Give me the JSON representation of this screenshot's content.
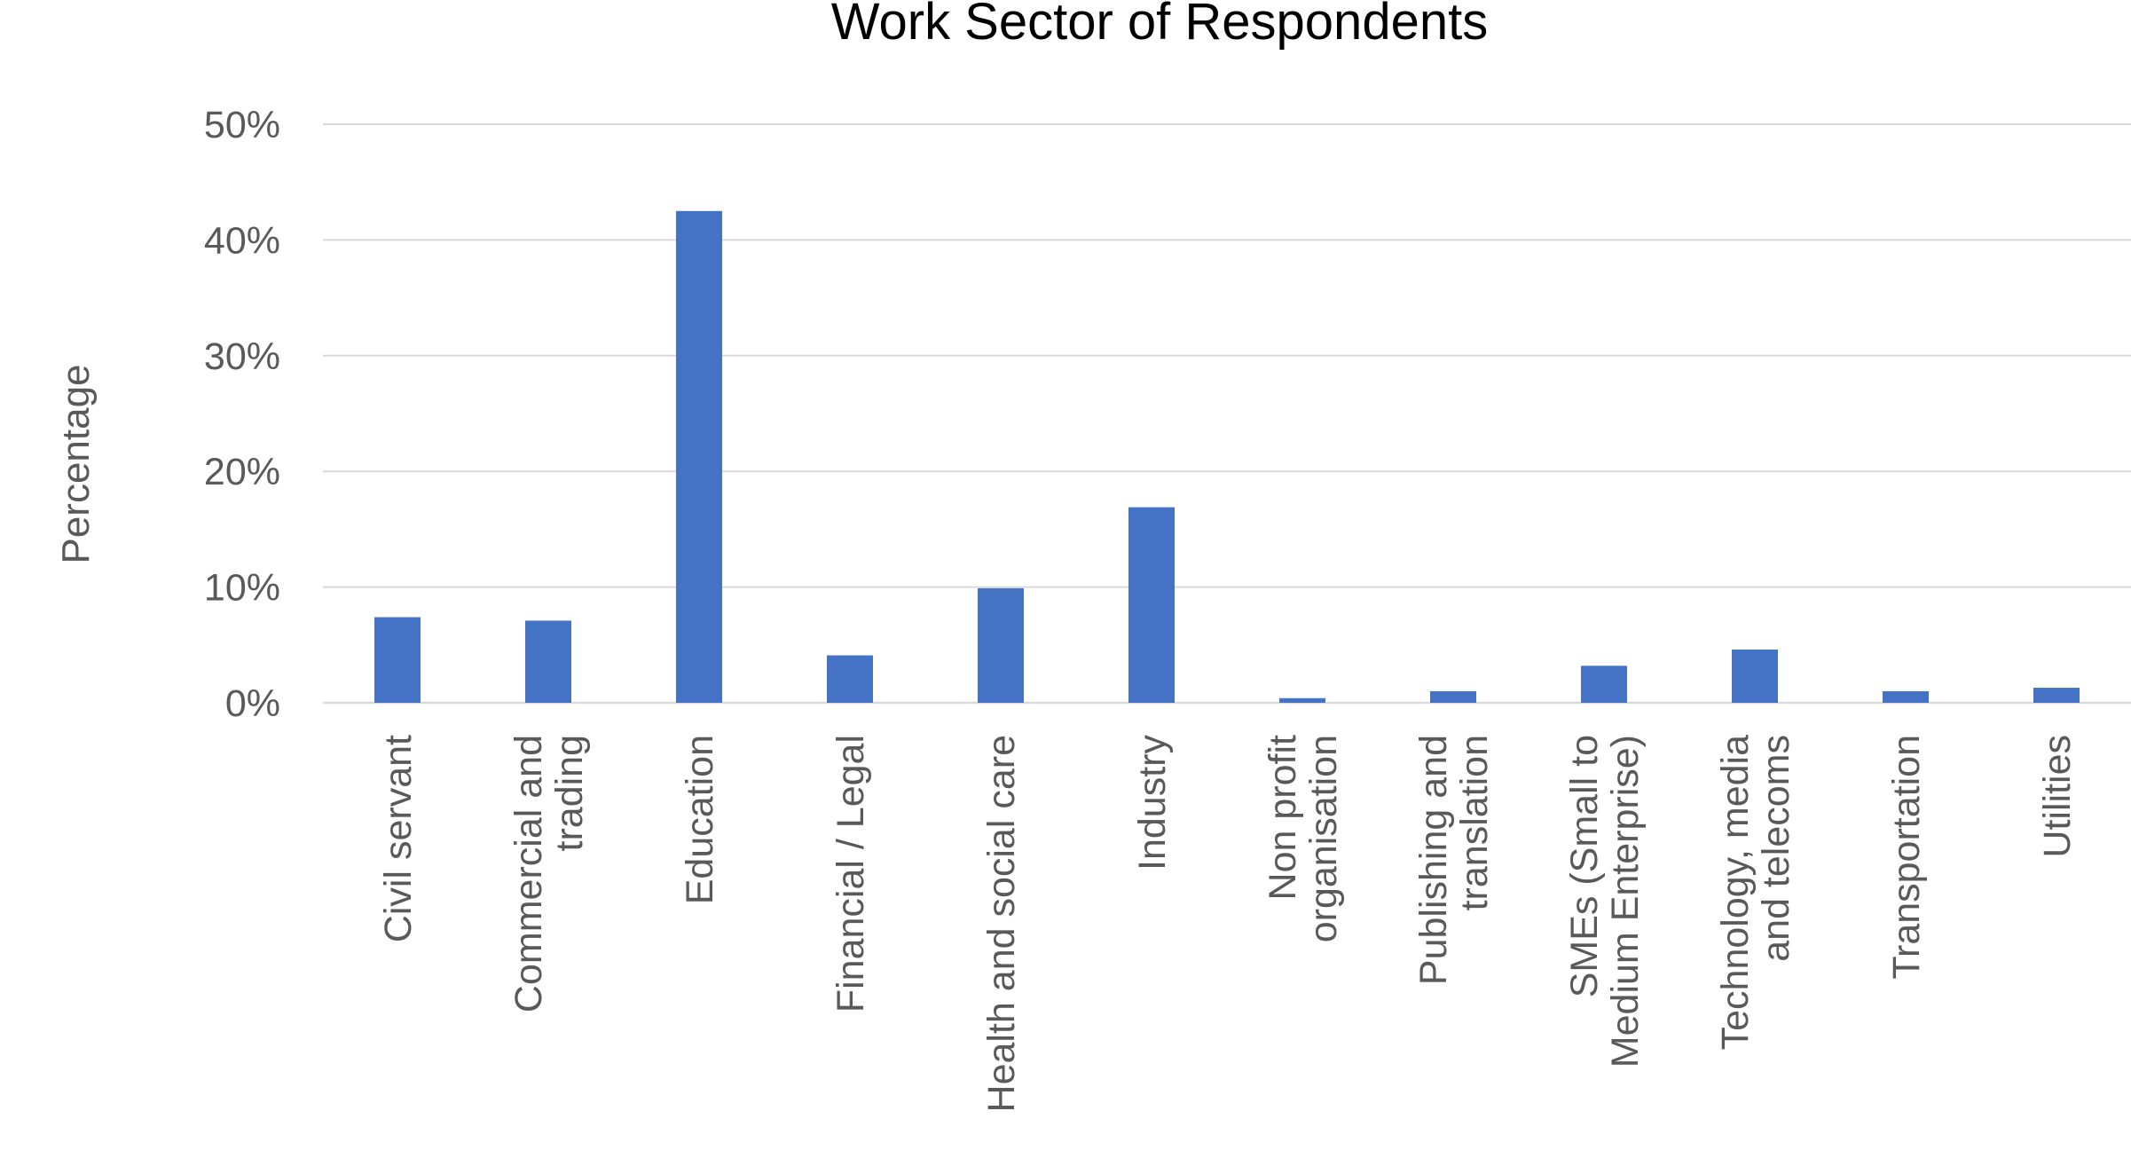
{
  "chart_data": {
    "type": "bar",
    "title": "Work Sector of Respondents",
    "xlabel": "",
    "ylabel": "Percentage",
    "ylim": [
      0,
      50
    ],
    "yticks": [
      0,
      10,
      20,
      30,
      40,
      50
    ],
    "ytick_labels": [
      "0%",
      "10%",
      "20%",
      "30%",
      "40%",
      "50%"
    ],
    "grid": true,
    "legend": "none",
    "bar_color": "#4472C4",
    "categories": [
      [
        "Civil servant"
      ],
      [
        "Commercial and",
        "trading"
      ],
      [
        "Education"
      ],
      [
        "Financial / Legal"
      ],
      [
        "Health and social care"
      ],
      [
        "Industry"
      ],
      [
        "Non profit",
        "organisation"
      ],
      [
        "Publishing and",
        "translation"
      ],
      [
        "SMEs (Small to",
        "Medium Enterprise)"
      ],
      [
        "Technology, media",
        "and telecoms"
      ],
      [
        "Transportation"
      ],
      [
        "Utilities"
      ]
    ],
    "values": [
      7.4,
      7.1,
      42.5,
      4.1,
      9.9,
      16.9,
      0.4,
      1.0,
      3.2,
      4.6,
      1.0,
      1.3
    ]
  }
}
